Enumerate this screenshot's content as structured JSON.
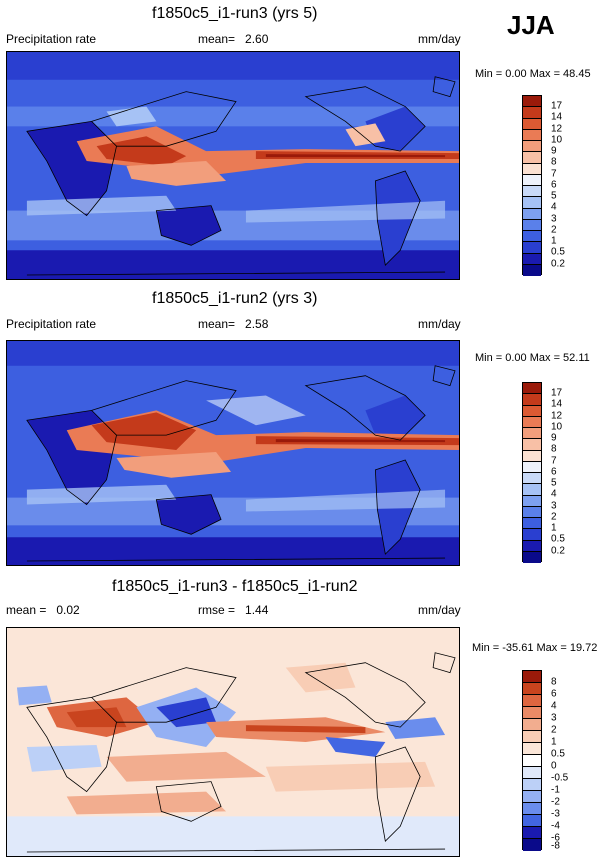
{
  "season": "JJA",
  "units": "mm/day",
  "colors": {
    "precip": [
      "#0a0a8a",
      "#1a1ab0",
      "#2a3fd0",
      "#3d5fe0",
      "#5a80ea",
      "#7da0f0",
      "#a6c2f5",
      "#c9daf8",
      "#eef2fb",
      "#fbe1d2",
      "#f8c0a6",
      "#f29e7c",
      "#ea7b55",
      "#dc5a33",
      "#c43a1b",
      "#9a1a0a"
    ],
    "diff": [
      "#0a0a8a",
      "#1a1ab0",
      "#2a3fd0",
      "#4266e2",
      "#6a8ded",
      "#94b0f3",
      "#bcd0f7",
      "#e0e9fa",
      "#fbe6d8",
      "#f8cdb5",
      "#f2ad8f",
      "#ea8a66",
      "#de6640",
      "#c9441e",
      "#9a1a0a"
    ]
  },
  "panels": [
    {
      "title": "f1850c5_i1-run3 (yrs 5)",
      "left_label": "Precipitation rate",
      "mean_label": "mean=",
      "mean_value": "2.60",
      "units": "mm/day",
      "minmax": "Min =    0.00 Max =  48.45",
      "ticks": [
        "17",
        "14",
        "12",
        "10",
        "9",
        "8",
        "7",
        "6",
        "5",
        "4",
        "3",
        "2",
        "1",
        "0.5",
        "0.2"
      ]
    },
    {
      "title": "f1850c5_i1-run2 (yrs 3)",
      "left_label": "Precipitation rate",
      "mean_label": "mean=",
      "mean_value": "2.58",
      "units": "mm/day",
      "minmax": "Min =    0.00 Max =  52.11",
      "ticks": [
        "17",
        "14",
        "12",
        "10",
        "9",
        "8",
        "7",
        "6",
        "5",
        "4",
        "3",
        "2",
        "1",
        "0.5",
        "0.2"
      ]
    },
    {
      "title": "f1850c5_i1-run3 - f1850c5_i1-run2",
      "left_label": "mean =",
      "left_value": "0.02",
      "mean_label": "rmse =",
      "mean_value": "1.44",
      "units": "mm/day",
      "minmax": "Min = -35.61 Max =  19.72",
      "ticks": [
        "8",
        "6",
        "4",
        "3",
        "2",
        "1",
        "0.5",
        "0",
        "-0.5",
        "-1",
        "-2",
        "-3",
        "-4",
        "-6",
        "-8"
      ]
    }
  ]
}
